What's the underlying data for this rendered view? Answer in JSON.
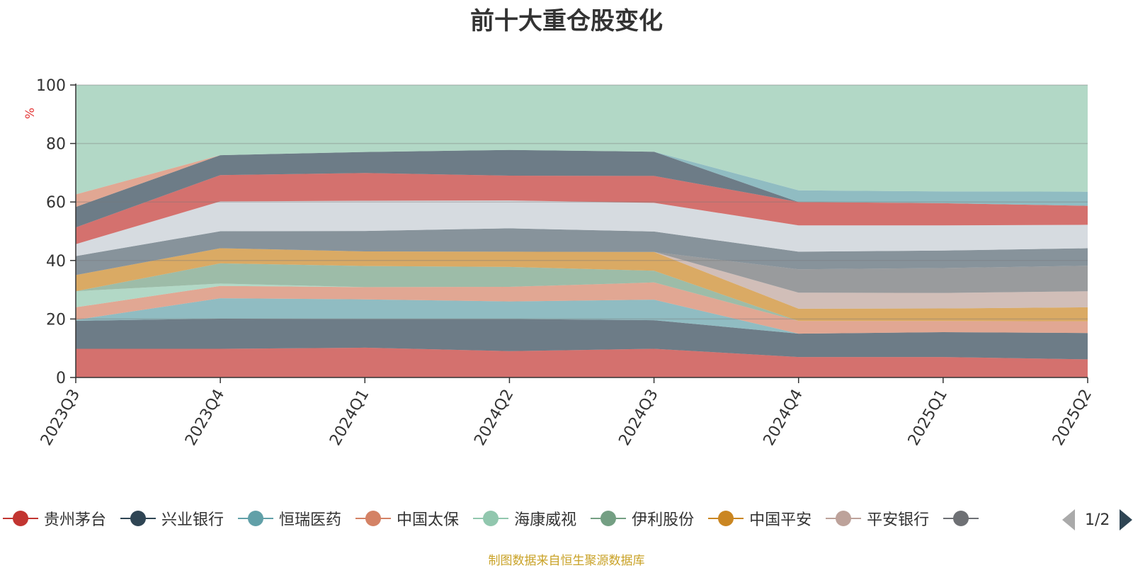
{
  "chart_data": {
    "type": "area",
    "stacked": true,
    "title": "前十大重仓股变化",
    "ylabel": "%",
    "ylim": [
      0,
      100
    ],
    "yticks": [
      0,
      20,
      40,
      60,
      80,
      100
    ],
    "grid": true,
    "categories": [
      "2023Q3",
      "2023Q4",
      "2024Q1",
      "2024Q2",
      "2024Q3",
      "2024Q4",
      "2025Q1",
      "2025Q2"
    ],
    "series": [
      {
        "name": "贵州茅台",
        "color": "#c23531",
        "values": [
          9.8,
          9.8,
          10.2,
          9.0,
          9.8,
          7.0,
          7.0,
          6.2
        ]
      },
      {
        "name": "兴业银行",
        "color": "#2f4554",
        "values": [
          9.6,
          10.3,
          9.8,
          11.0,
          9.8,
          8.0,
          8.5,
          9.0
        ]
      },
      {
        "name": "恒瑞医药",
        "color": "#61a0a8",
        "values": [
          0.3,
          7.0,
          6.7,
          6.0,
          7.0,
          0.0,
          0.0,
          0.0
        ]
      },
      {
        "name": "中国太保",
        "color": "#d48265",
        "values": [
          4.3,
          4.2,
          4.2,
          5.0,
          5.9,
          4.3,
          3.8,
          4.0
        ]
      },
      {
        "name": "海康威视",
        "color": "#91c7ae",
        "values": [
          5.5,
          0.8,
          0.0,
          0.0,
          0.0,
          0.0,
          0.0,
          0.0
        ]
      },
      {
        "name": "伊利股份",
        "color": "#749f83",
        "values": [
          0.0,
          6.9,
          7.2,
          6.8,
          4.0,
          0.0,
          0.0,
          0.0
        ]
      },
      {
        "name": "中国平安",
        "color": "#ca8622",
        "values": [
          5.5,
          5.2,
          5.0,
          5.2,
          6.4,
          4.2,
          4.3,
          4.8
        ]
      },
      {
        "name": "平安银行",
        "color": "#bda29a",
        "values": [
          0.0,
          0.0,
          0.0,
          0.0,
          0.0,
          5.5,
          5.3,
          5.5
        ]
      },
      {
        "name": "",
        "color": "#6e7074",
        "values": [
          0.0,
          0.0,
          0.0,
          0.0,
          0.0,
          8.0,
          8.5,
          8.7
        ]
      },
      {
        "name": "",
        "color": "#546570",
        "values": [
          6.5,
          5.8,
          7.0,
          8.0,
          7.0,
          6.0,
          6.0,
          6.0
        ]
      },
      {
        "name": "",
        "color": "#c4ccd3",
        "values": [
          4.1,
          10.2,
          10.3,
          9.5,
          9.8,
          9.0,
          8.6,
          8.0
        ]
      },
      {
        "name": "",
        "color": "#c23531",
        "values": [
          5.7,
          9.0,
          9.5,
          8.5,
          9.2,
          8.0,
          7.6,
          6.5
        ]
      },
      {
        "name": "",
        "color": "#2f4554",
        "values": [
          7.0,
          6.8,
          7.2,
          8.8,
          8.3,
          0.0,
          0.0,
          0.0
        ]
      },
      {
        "name": "",
        "color": "#61a0a8",
        "values": [
          0.0,
          0.0,
          0.0,
          0.0,
          0.0,
          4.0,
          4.0,
          4.8
        ]
      },
      {
        "name": "",
        "color": "#d48265",
        "values": [
          4.3,
          0.0,
          0.0,
          0.0,
          0.0,
          0.0,
          0.0,
          0.0
        ]
      },
      {
        "name": "",
        "color": "#91c7ae",
        "values": [
          37.4,
          24.0,
          22.9,
          22.2,
          22.8,
          36.0,
          36.4,
          36.5
        ]
      }
    ]
  },
  "legend": {
    "items": [
      {
        "label": "贵州茅台",
        "color": "#c23531"
      },
      {
        "label": "兴业银行",
        "color": "#2f4554"
      },
      {
        "label": "恒瑞医药",
        "color": "#61a0a8"
      },
      {
        "label": "中国太保",
        "color": "#d48265"
      },
      {
        "label": "海康威视",
        "color": "#91c7ae"
      },
      {
        "label": "伊利股份",
        "color": "#749f83"
      },
      {
        "label": "中国平安",
        "color": "#ca8622"
      },
      {
        "label": "平安银行",
        "color": "#bda29a"
      },
      {
        "label": "",
        "color": "#6e7074"
      }
    ],
    "pager": "1/2"
  },
  "source": "制图数据来自恒生聚源数据库"
}
